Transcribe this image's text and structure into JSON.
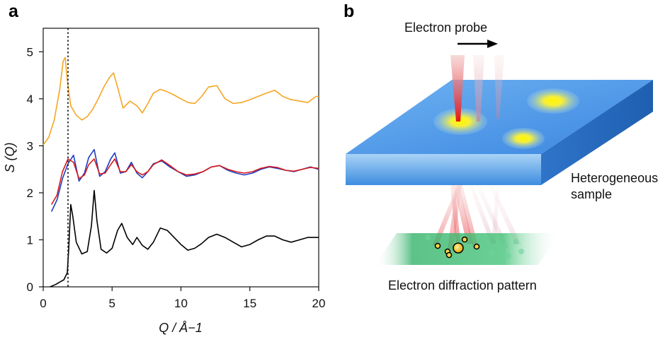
{
  "panels": {
    "a": {
      "letter": "a"
    },
    "b": {
      "letter": "b"
    }
  },
  "chart_data": {
    "type": "line",
    "title": "",
    "xlabel": "Q / Å−1",
    "ylabel": "S (Q)",
    "xlim": [
      0,
      20
    ],
    "ylim": [
      0,
      5.5
    ],
    "x_ticks": [
      0,
      5,
      10,
      15,
      20
    ],
    "y_ticks": [
      0,
      1,
      2,
      3,
      4,
      5
    ],
    "grid": false,
    "vline_x": 1.8,
    "series": [
      {
        "color": "#f5a623",
        "x": [
          0.0,
          0.4,
          0.8,
          1.2,
          1.45,
          1.6,
          1.75,
          2.0,
          2.4,
          2.8,
          3.2,
          3.6,
          4.0,
          4.4,
          4.8,
          5.1,
          5.4,
          5.8,
          6.3,
          6.8,
          7.2,
          7.6,
          8.0,
          8.5,
          9.0,
          9.5,
          10.0,
          10.5,
          11.0,
          11.5,
          12.0,
          12.6,
          13.2,
          13.8,
          14.4,
          15.0,
          15.6,
          16.2,
          16.8,
          17.4,
          18.0,
          18.6,
          19.2,
          19.8,
          20.0
        ],
        "y": [
          3.02,
          3.18,
          3.55,
          4.2,
          4.8,
          4.88,
          4.4,
          3.85,
          3.65,
          3.55,
          3.62,
          3.78,
          4.0,
          4.25,
          4.45,
          4.55,
          4.25,
          3.8,
          3.95,
          3.85,
          3.7,
          3.9,
          4.12,
          4.2,
          4.15,
          4.08,
          4.0,
          3.92,
          3.9,
          4.05,
          4.25,
          4.28,
          4.0,
          3.9,
          3.92,
          3.98,
          4.05,
          4.12,
          4.18,
          4.05,
          3.98,
          3.95,
          3.92,
          4.05,
          4.05
        ]
      },
      {
        "color": "#1f3fbf",
        "x": [
          0.6,
          1.0,
          1.4,
          1.8,
          2.2,
          2.6,
          3.0,
          3.3,
          3.7,
          4.1,
          4.5,
          4.9,
          5.2,
          5.6,
          6.0,
          6.4,
          6.8,
          7.2,
          7.6,
          8.0,
          8.6,
          9.2,
          9.8,
          10.4,
          11.0,
          11.6,
          12.2,
          12.8,
          13.4,
          14.0,
          14.6,
          15.2,
          15.8,
          16.4,
          17.0,
          17.6,
          18.2,
          18.8,
          19.4,
          20.0
        ],
        "y": [
          1.6,
          1.85,
          2.3,
          2.62,
          2.8,
          2.25,
          2.42,
          2.75,
          2.92,
          2.35,
          2.45,
          2.72,
          2.85,
          2.42,
          2.45,
          2.65,
          2.42,
          2.32,
          2.45,
          2.62,
          2.68,
          2.55,
          2.45,
          2.35,
          2.38,
          2.45,
          2.55,
          2.58,
          2.48,
          2.42,
          2.38,
          2.42,
          2.5,
          2.55,
          2.52,
          2.48,
          2.45,
          2.5,
          2.55,
          2.5
        ]
      },
      {
        "color": "#d7191c",
        "x": [
          0.6,
          1.0,
          1.4,
          1.8,
          2.2,
          2.6,
          3.0,
          3.3,
          3.7,
          4.1,
          4.5,
          4.9,
          5.2,
          5.6,
          6.0,
          6.4,
          6.8,
          7.2,
          7.6,
          8.0,
          8.6,
          9.2,
          9.8,
          10.4,
          11.0,
          11.6,
          12.2,
          12.8,
          13.4,
          14.0,
          14.6,
          15.2,
          15.8,
          16.4,
          17.0,
          17.6,
          18.2,
          18.8,
          19.4,
          20.0
        ],
        "y": [
          1.75,
          1.95,
          2.45,
          2.72,
          2.65,
          2.3,
          2.38,
          2.6,
          2.72,
          2.4,
          2.42,
          2.6,
          2.72,
          2.45,
          2.45,
          2.6,
          2.45,
          2.38,
          2.45,
          2.6,
          2.7,
          2.58,
          2.45,
          2.38,
          2.4,
          2.45,
          2.55,
          2.58,
          2.5,
          2.45,
          2.42,
          2.45,
          2.52,
          2.56,
          2.54,
          2.48,
          2.46,
          2.5,
          2.54,
          2.52
        ]
      },
      {
        "color": "#000000",
        "x": [
          0.5,
          0.9,
          1.2,
          1.5,
          1.75,
          1.85,
          2.0,
          2.15,
          2.4,
          2.8,
          3.2,
          3.5,
          3.7,
          3.9,
          4.2,
          4.6,
          5.0,
          5.4,
          5.7,
          6.1,
          6.5,
          6.8,
          7.2,
          7.6,
          8.0,
          8.5,
          9.0,
          9.5,
          10.0,
          10.5,
          11.0,
          11.5,
          12.0,
          12.6,
          13.2,
          13.8,
          14.4,
          15.0,
          15.6,
          16.2,
          16.8,
          17.4,
          18.0,
          18.6,
          19.2,
          19.8,
          20.0
        ],
        "y": [
          0.0,
          0.05,
          0.1,
          0.15,
          0.3,
          0.8,
          1.75,
          1.5,
          0.95,
          0.7,
          0.75,
          1.3,
          2.05,
          1.4,
          0.8,
          0.72,
          0.82,
          1.2,
          1.35,
          1.05,
          0.9,
          1.05,
          0.88,
          0.8,
          0.95,
          1.25,
          1.2,
          1.05,
          0.9,
          0.78,
          0.82,
          0.92,
          1.05,
          1.12,
          1.05,
          0.95,
          0.85,
          0.9,
          1.0,
          1.08,
          1.08,
          1.0,
          0.95,
          1.0,
          1.05,
          1.05,
          1.05
        ]
      }
    ]
  },
  "diagram": {
    "probe_label": "Electron probe",
    "sample_label_line1": "Heterogeneous",
    "sample_label_line2": "sample",
    "pattern_label": "Electron diffraction pattern"
  }
}
